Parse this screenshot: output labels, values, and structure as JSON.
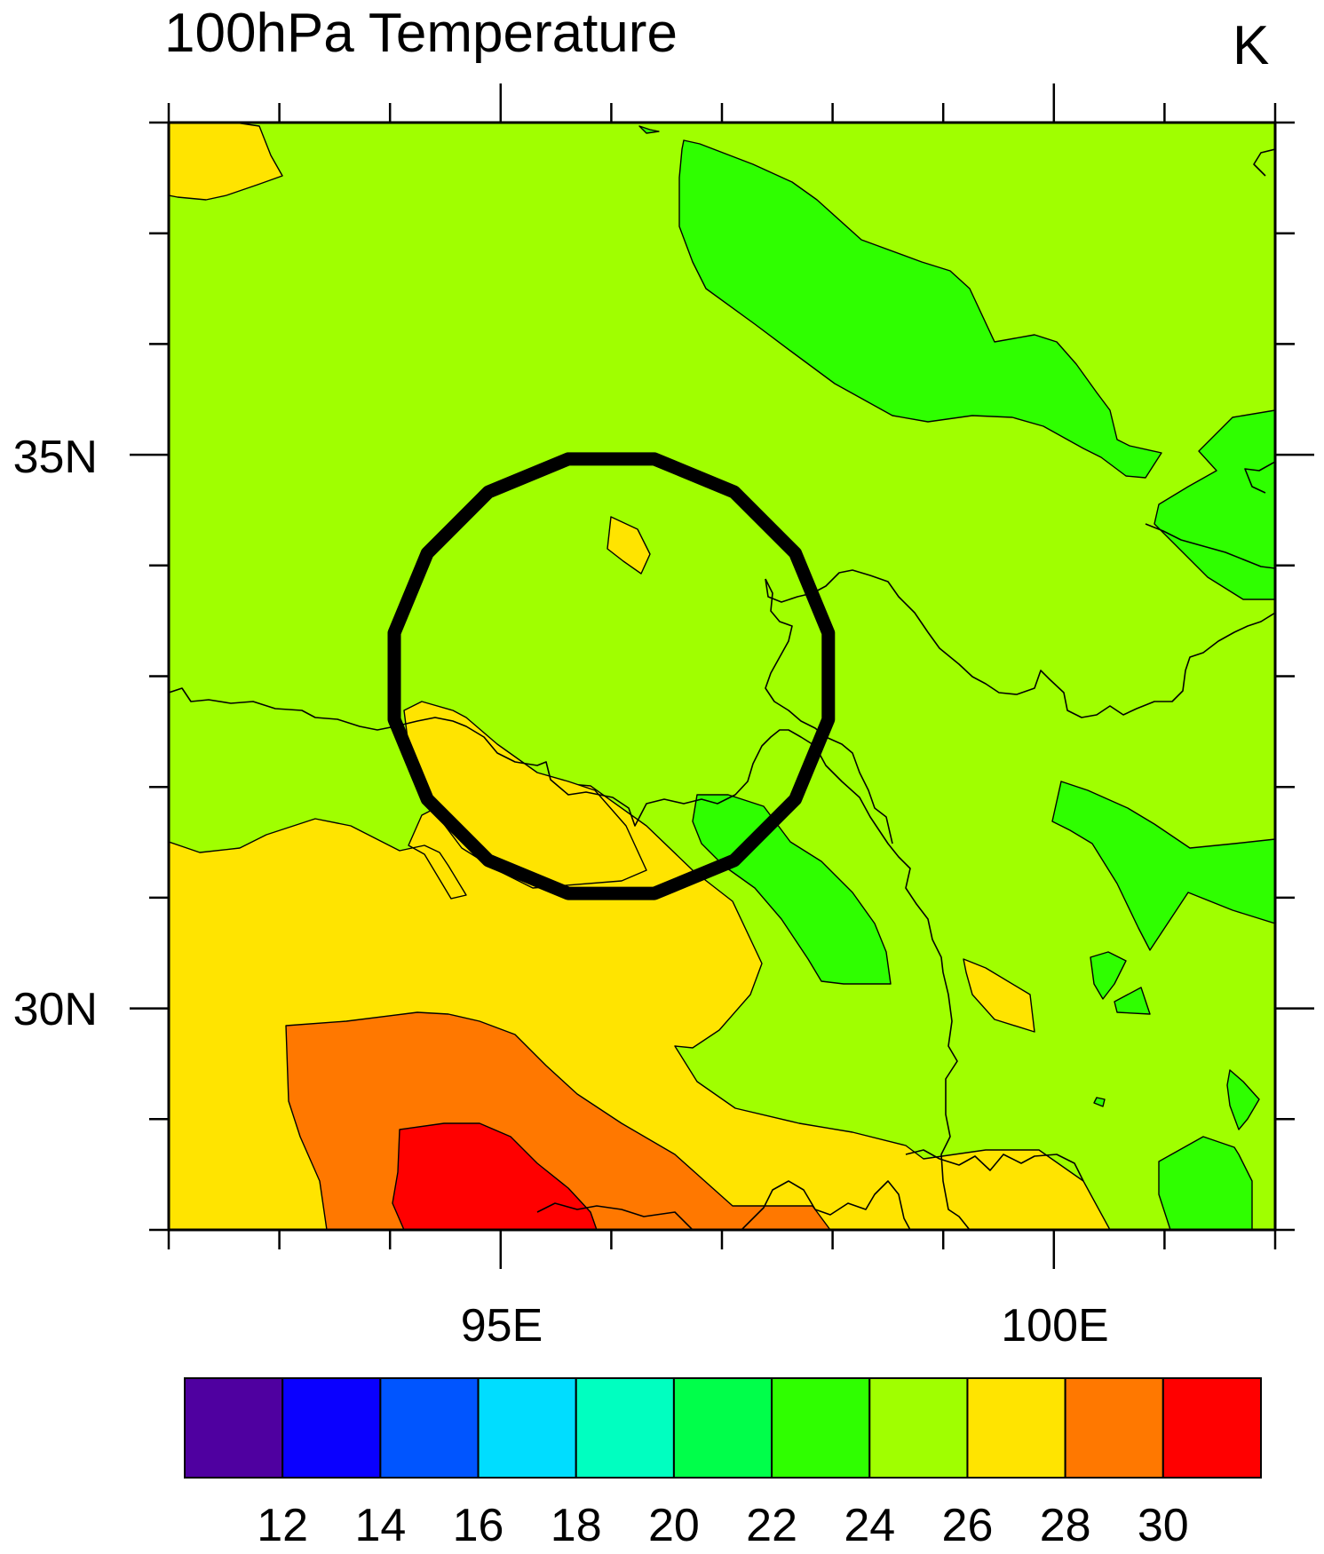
{
  "map": {
    "title": "100hPa Temperature",
    "unit": "K",
    "region": {
      "lon_range": [
        92,
        102
      ],
      "lat_range": [
        28,
        38
      ]
    },
    "x_ticks": [
      {
        "lon": 95,
        "label": "95E"
      },
      {
        "lon": 100,
        "label": "100E"
      }
    ],
    "y_ticks": [
      {
        "lat": 35,
        "label": "35N"
      },
      {
        "lat": 30,
        "label": "30N"
      }
    ],
    "highlight": {
      "shape": "circle",
      "center_lon": 96.0,
      "center_lat": 33.0,
      "radius_deg": 2.0
    }
  },
  "colorbar": {
    "levels": [
      "12",
      "14",
      "16",
      "18",
      "20",
      "22",
      "24",
      "26",
      "28",
      "30"
    ],
    "colors": [
      "#4f00a0",
      "#0a00ff",
      "#0055ff",
      "#00ddff",
      "#00ffc0",
      "#00ff4a",
      "#2fff00",
      "#a0ff00",
      "#ffe400",
      "#ff7800",
      "#ff0000"
    ]
  }
}
